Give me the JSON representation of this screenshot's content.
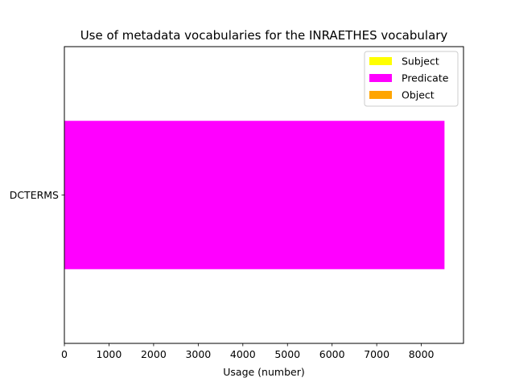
{
  "chart_data": {
    "type": "bar",
    "orientation": "horizontal",
    "stacked": true,
    "title": "Use of metadata vocabularies for the INRAETHES vocabulary",
    "xlabel": "Usage (number)",
    "ylabel": "",
    "categories": [
      "DCTERMS"
    ],
    "series": [
      {
        "name": "Subject",
        "color": "#ffff00",
        "values": [
          0
        ]
      },
      {
        "name": "Predicate",
        "color": "#ff00ff",
        "values": [
          8519
        ]
      },
      {
        "name": "Object",
        "color": "#ffa500",
        "values": [
          0
        ]
      }
    ],
    "xlim": [
      0,
      8945
    ],
    "xticks": [
      0,
      1000,
      2000,
      3000,
      4000,
      5000,
      6000,
      7000,
      8000
    ],
    "grid": false,
    "legend_position": "upper right"
  }
}
